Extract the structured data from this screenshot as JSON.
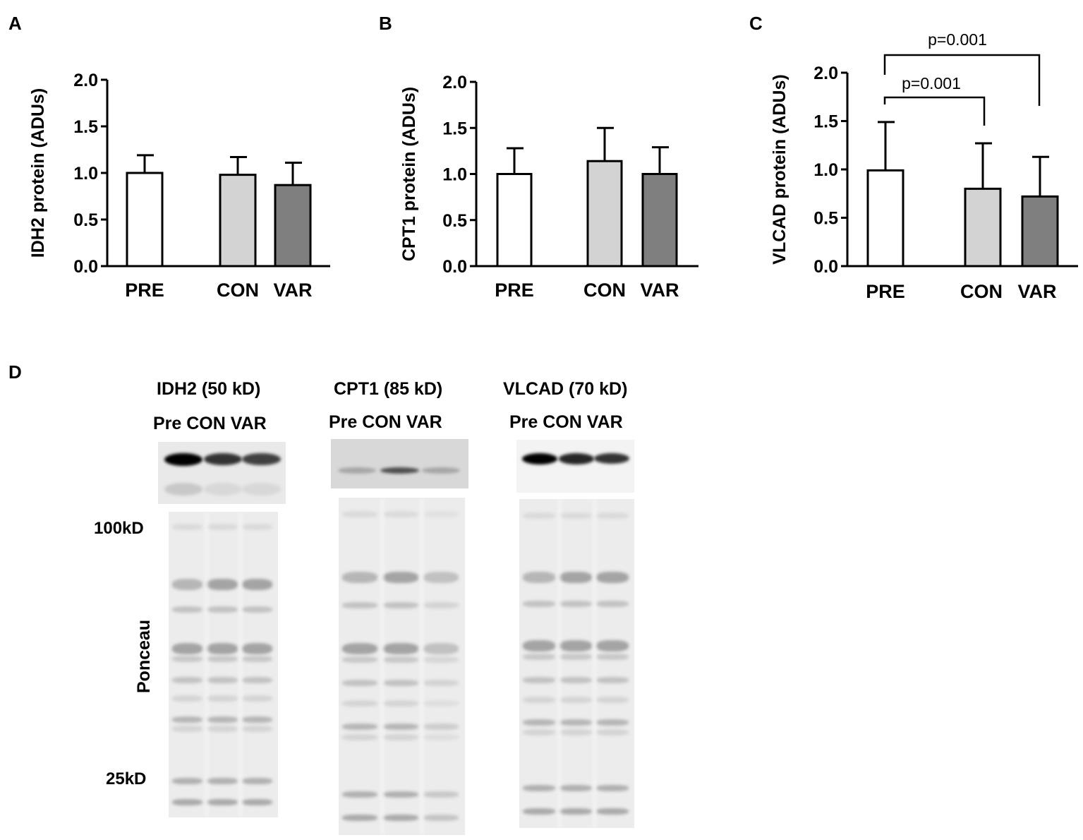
{
  "panels": {
    "A": {
      "letter": "A"
    },
    "B": {
      "letter": "B"
    },
    "C": {
      "letter": "C"
    },
    "D": {
      "letter": "D"
    }
  },
  "colors": {
    "PRE": "#ffffff",
    "CON": "#d3d3d3",
    "VAR": "#7f7f7f",
    "stroke": "#000000"
  },
  "chart_data": [
    {
      "id": "A",
      "type": "bar",
      "title": "",
      "ylabel": "IDH2 protein (ADUs)",
      "xlabel": "",
      "categories": [
        "PRE",
        "CON",
        "VAR"
      ],
      "values": [
        1.0,
        0.98,
        0.87
      ],
      "error_upper": [
        1.19,
        1.17,
        1.11
      ],
      "ylim": [
        0,
        2.0
      ],
      "yticks": [
        "0.0",
        "0.5",
        "1.0",
        "1.5",
        "2.0"
      ],
      "grid": false,
      "annotations": []
    },
    {
      "id": "B",
      "type": "bar",
      "title": "",
      "ylabel": "CPT1 protein (ADUs)",
      "xlabel": "",
      "categories": [
        "PRE",
        "CON",
        "VAR"
      ],
      "values": [
        1.0,
        1.14,
        1.0
      ],
      "error_upper": [
        1.28,
        1.5,
        1.29
      ],
      "ylim": [
        0,
        2.0
      ],
      "yticks": [
        "0.0",
        "0.5",
        "1.0",
        "1.5",
        "2.0"
      ],
      "grid": false,
      "annotations": []
    },
    {
      "id": "C",
      "type": "bar",
      "title": "",
      "ylabel": "VLCAD protein (ADUs)",
      "xlabel": "",
      "categories": [
        "PRE",
        "CON",
        "VAR"
      ],
      "values": [
        0.99,
        0.8,
        0.72
      ],
      "error_upper": [
        1.49,
        1.27,
        1.13
      ],
      "ylim": [
        0,
        2.0
      ],
      "yticks": [
        "0.0",
        "0.5",
        "1.0",
        "1.5",
        "2.0"
      ],
      "grid": false,
      "annotations": [
        {
          "text": "p=0.001",
          "from": "PRE",
          "to": "CON"
        },
        {
          "text": "p=0.001",
          "from": "PRE",
          "to": "VAR"
        }
      ]
    }
  ],
  "western_blots": {
    "blots": [
      {
        "title": "IDH2 (50 kD)",
        "lanes": "Pre CON VAR",
        "band_intensity": [
          1.0,
          0.8,
          0.75
        ]
      },
      {
        "title": "CPT1 (85 kD)",
        "lanes": "Pre CON VAR",
        "band_intensity": [
          0.35,
          0.7,
          0.35
        ]
      },
      {
        "title": "VLCAD (70 kD)",
        "lanes": "Pre CON VAR",
        "band_intensity": [
          1.0,
          0.85,
          0.8
        ]
      }
    ],
    "ponceau_label": "Ponceau",
    "mw_markers": [
      "100kD",
      "25kD"
    ]
  }
}
